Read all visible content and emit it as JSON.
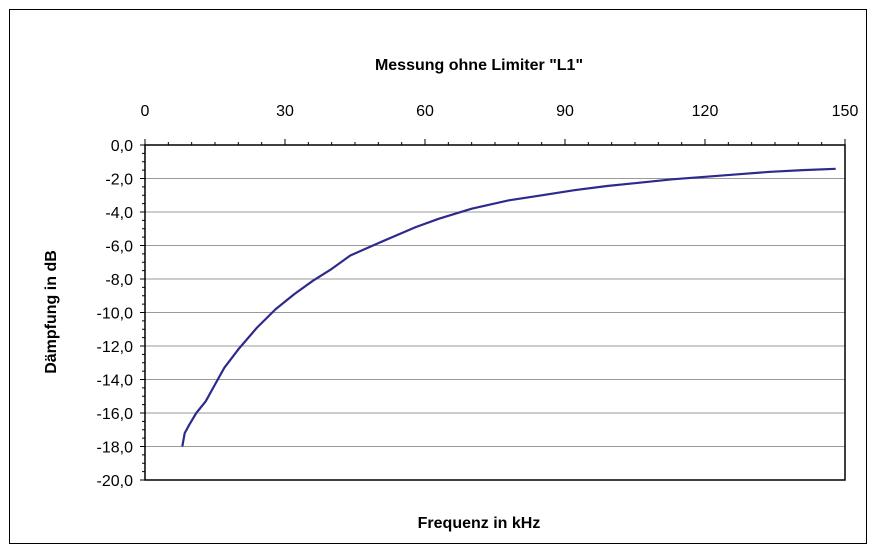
{
  "chart_data": {
    "type": "line",
    "title": "Messung ohne Limiter \"L1\"",
    "xlabel": "Frequenz in kHz",
    "ylabel": "Dämpfung in dB",
    "xlim": [
      0,
      150
    ],
    "ylim": [
      -20,
      0
    ],
    "x_tick_labels": [
      "0",
      "30",
      "60",
      "90",
      "120",
      "150"
    ],
    "x_ticks": [
      0,
      30,
      60,
      90,
      120,
      150
    ],
    "y_tick_labels": [
      "0,0",
      "-2,0",
      "-4,0",
      "-6,0",
      "-8,0",
      "-10,0",
      "-12,0",
      "-14,0",
      "-16,0",
      "-18,0",
      "-20,0"
    ],
    "y_ticks": [
      0,
      -2,
      -4,
      -6,
      -8,
      -10,
      -12,
      -14,
      -16,
      -18,
      -20
    ],
    "x_axis_position": "top",
    "grid": "horizontal",
    "line_color": "#2e2a8c",
    "series": [
      {
        "x": [
          8,
          8.5,
          9.5,
          11,
          13,
          15,
          17,
          20,
          24,
          28,
          32,
          36,
          40,
          44,
          48,
          53,
          58,
          63,
          70,
          78,
          85,
          92,
          99,
          106,
          113,
          120,
          127,
          134,
          141,
          148
        ],
        "y": [
          -18.0,
          -17.2,
          -16.7,
          -16.0,
          -15.3,
          -14.3,
          -13.3,
          -12.2,
          -10.9,
          -9.8,
          -8.9,
          -8.1,
          -7.4,
          -6.6,
          -6.1,
          -5.5,
          -4.9,
          -4.4,
          -3.8,
          -3.3,
          -3.0,
          -2.7,
          -2.45,
          -2.25,
          -2.05,
          -1.9,
          -1.75,
          -1.6,
          -1.5,
          -1.42
        ]
      }
    ]
  }
}
